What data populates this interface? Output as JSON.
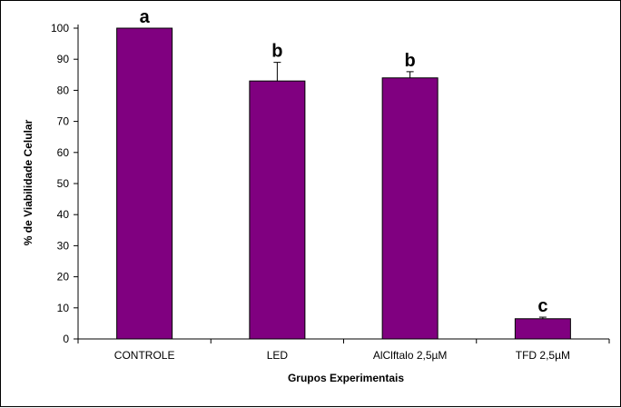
{
  "chart_data": {
    "type": "bar",
    "categories": [
      "CONTROLE",
      "LED",
      "AlClftalo 2,5µM",
      "TFD 2,5µM"
    ],
    "values": [
      100,
      83,
      84,
      6.5
    ],
    "errors": [
      0,
      6,
      2,
      0.5
    ],
    "significance_letters": [
      "a",
      "b",
      "b",
      "c"
    ],
    "xlabel": "Grupos Experimentais",
    "ylabel": "% de Viabilidade Celular",
    "ylim": [
      0,
      100
    ],
    "yticks": [
      0,
      10,
      20,
      30,
      40,
      50,
      60,
      70,
      80,
      90,
      100
    ],
    "grid": false,
    "bar_color": "#800080"
  }
}
